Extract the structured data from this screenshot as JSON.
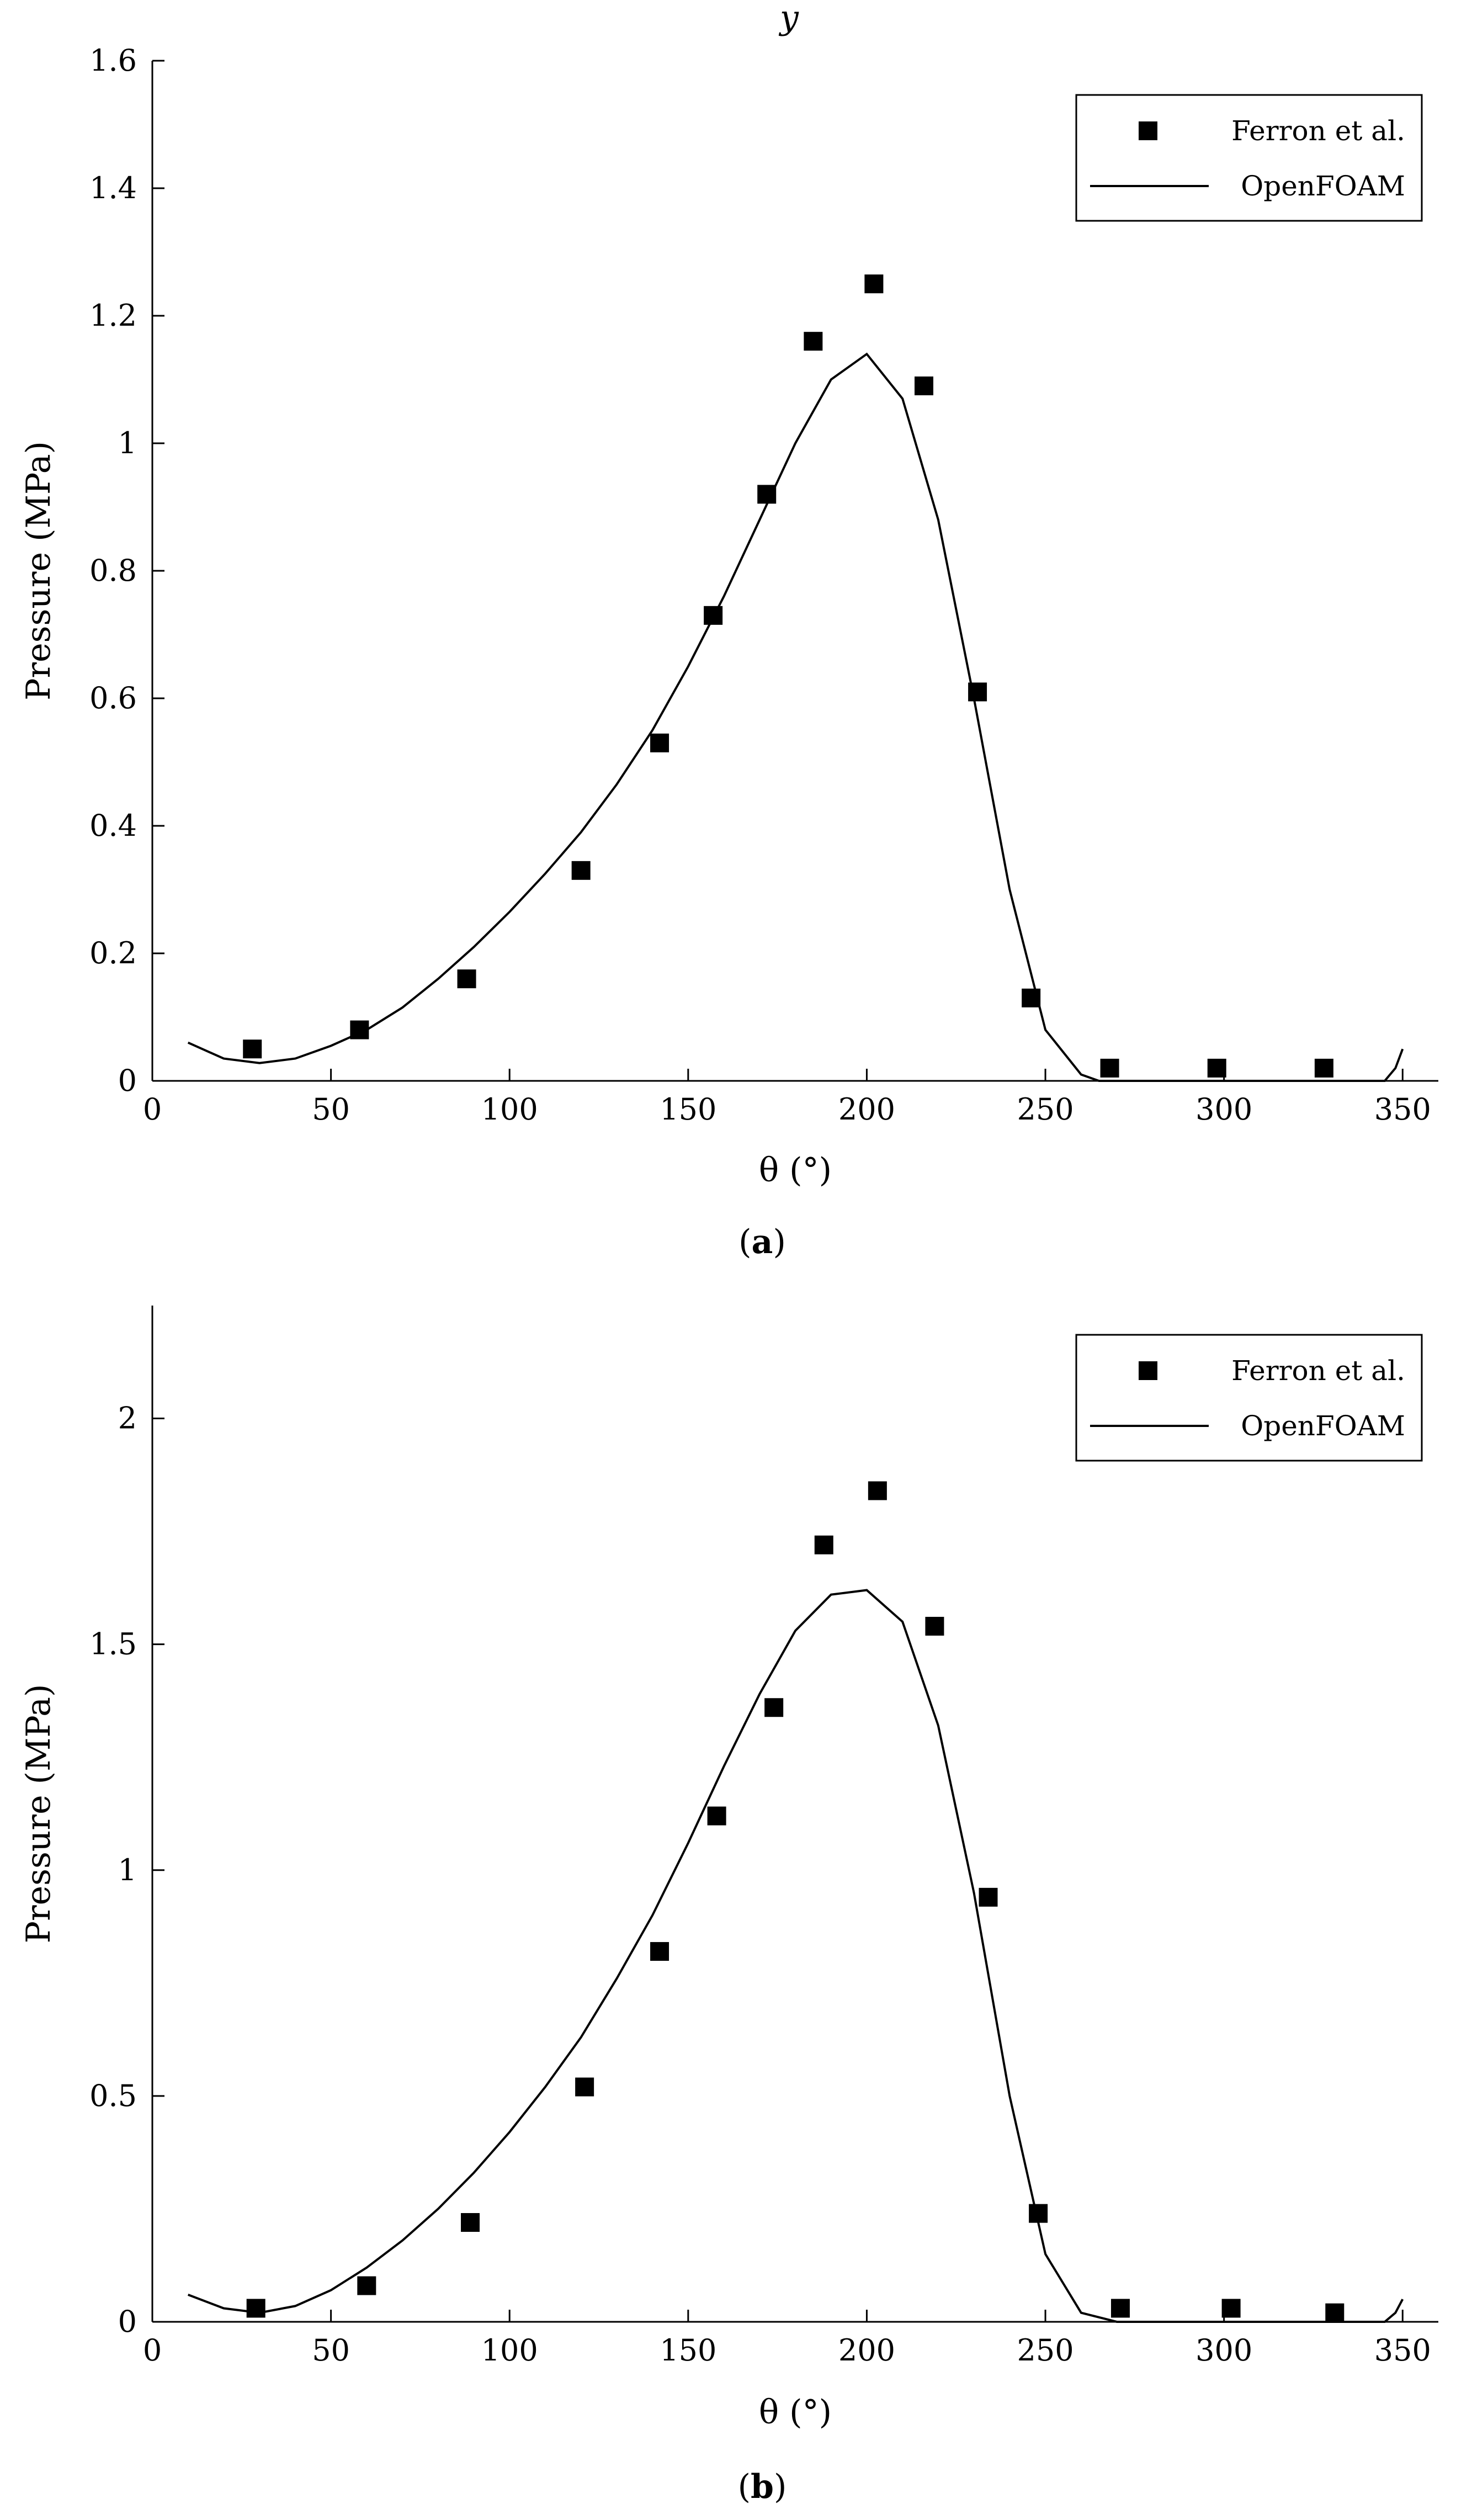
{
  "partial_header": "y",
  "chart_data": [
    {
      "id": "a",
      "type": "scatter",
      "caption": "(a)",
      "xlabel": "θ (°)",
      "ylabel": "Pressure (MPa)",
      "xlim": [
        0,
        360
      ],
      "ylim": [
        0,
        1.6
      ],
      "xticks": [
        0,
        50,
        100,
        150,
        200,
        250,
        300,
        350
      ],
      "yticks": [
        0,
        0.2,
        0.4,
        0.6,
        0.8,
        1,
        1.2,
        1.4,
        1.6
      ],
      "ytick_labels": [
        "0",
        "0.2",
        "0.4",
        "0.6",
        "0.8",
        "1",
        "1.2",
        "1.4",
        "1.6"
      ],
      "legend_position": "top-right",
      "series": [
        {
          "name": "Ferron et al.",
          "kind": "marker",
          "x": [
            28,
            58,
            88,
            120,
            142,
            157,
            172,
            185,
            202,
            216,
            231,
            246,
            268,
            298,
            328
          ],
          "y": [
            0.05,
            0.08,
            0.16,
            0.33,
            0.53,
            0.73,
            0.92,
            1.16,
            1.25,
            1.09,
            0.61,
            0.13,
            0.02,
            0.02,
            0.02
          ]
        },
        {
          "name": "OpenFOAM",
          "kind": "line",
          "x": [
            10,
            20,
            30,
            40,
            50,
            60,
            70,
            80,
            90,
            100,
            110,
            120,
            130,
            140,
            150,
            160,
            170,
            180,
            190,
            200,
            210,
            220,
            230,
            240,
            250,
            260,
            265,
            270,
            280,
            290,
            300,
            310,
            320,
            330,
            340,
            345,
            348,
            350
          ],
          "y": [
            0.06,
            0.035,
            0.028,
            0.035,
            0.055,
            0.08,
            0.115,
            0.16,
            0.21,
            0.265,
            0.325,
            0.39,
            0.465,
            0.55,
            0.65,
            0.76,
            0.88,
            1.0,
            1.1,
            1.14,
            1.07,
            0.88,
            0.6,
            0.3,
            0.08,
            0.01,
            0.0,
            0.0,
            0.0,
            0.0,
            0.0,
            0.0,
            0.0,
            0.0,
            0.0,
            0.0,
            0.02,
            0.05
          ]
        }
      ]
    },
    {
      "id": "b",
      "type": "scatter",
      "caption": "(b)",
      "xlabel": "θ (°)",
      "ylabel": "Pressure (MPa)",
      "xlim": [
        0,
        360
      ],
      "ylim": [
        0,
        2.25
      ],
      "xticks": [
        0,
        50,
        100,
        150,
        200,
        250,
        300,
        350
      ],
      "yticks": [
        0,
        0.5,
        1,
        1.5,
        2
      ],
      "ytick_labels": [
        "0",
        "0.5",
        "1",
        "1.5",
        "2"
      ],
      "legend_position": "top-right",
      "series": [
        {
          "name": "Ferron et al.",
          "kind": "marker",
          "x": [
            29,
            60,
            89,
            121,
            142,
            158,
            174,
            188,
            203,
            219,
            234,
            248,
            271,
            302,
            331
          ],
          "y": [
            0.03,
            0.08,
            0.22,
            0.52,
            0.82,
            1.12,
            1.36,
            1.72,
            1.84,
            1.54,
            0.94,
            0.24,
            0.03,
            0.03,
            0.02
          ]
        },
        {
          "name": "OpenFOAM",
          "kind": "line",
          "x": [
            10,
            20,
            30,
            40,
            50,
            60,
            70,
            80,
            90,
            100,
            110,
            120,
            130,
            140,
            150,
            160,
            170,
            180,
            190,
            200,
            210,
            220,
            230,
            240,
            250,
            260,
            270,
            280,
            290,
            300,
            310,
            320,
            330,
            340,
            345,
            348,
            350
          ],
          "y": [
            0.06,
            0.03,
            0.02,
            0.035,
            0.07,
            0.12,
            0.18,
            0.25,
            0.33,
            0.42,
            0.52,
            0.63,
            0.76,
            0.9,
            1.06,
            1.23,
            1.39,
            1.53,
            1.61,
            1.62,
            1.55,
            1.32,
            0.95,
            0.5,
            0.15,
            0.02,
            0.0,
            0.0,
            0.0,
            0.0,
            0.0,
            0.0,
            0.0,
            0.0,
            0.0,
            0.02,
            0.05
          ]
        }
      ]
    }
  ]
}
